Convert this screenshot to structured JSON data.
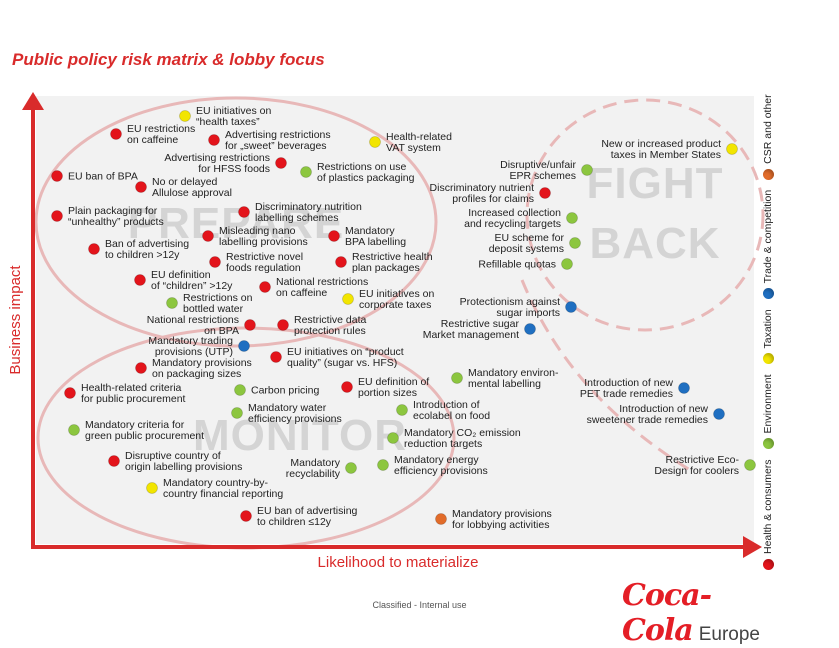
{
  "title": "Public policy risk matrix & lobby focus",
  "footer": "Classified - Internal use",
  "logo": {
    "script": "Coca-Cola",
    "region": "Europe"
  },
  "colors": {
    "Health & consumers": "#e3141b",
    "Environment": "#8cc63f",
    "Taxation": "#f2e500",
    "Trade & competition": "#1f6fc1",
    "CSR and other": "#e26c2a",
    "axis": "#d92b2b"
  },
  "legend": [
    "Health & consumers",
    "Environment",
    "Taxation",
    "Trade & competition",
    "CSR and other"
  ],
  "chart_data": {
    "type": "scatter",
    "title": "Public policy risk matrix & lobby focus",
    "xlabel": "Likelihood to materialize",
    "ylabel": "Business impact",
    "zones": [
      "PREPARE",
      "MONITOR",
      "FIGHT BACK"
    ],
    "points": [
      {
        "category": "Taxation",
        "label": [
          "EU initiatives on",
          "“health taxes”"
        ]
      },
      {
        "category": "Health & consumers",
        "label": [
          "EU restrictions",
          "on caffeine"
        ]
      },
      {
        "category": "Health & consumers",
        "label": [
          "Advertising restrictions",
          "for „sweet” beverages"
        ]
      },
      {
        "category": "Taxation",
        "label": [
          "Health-related",
          "VAT system"
        ]
      },
      {
        "category": "Taxation",
        "label": [
          "New or increased product",
          "taxes in Member States"
        ]
      },
      {
        "category": "Health & consumers",
        "label": [
          "Advertising restrictions",
          "for HFSS foods"
        ]
      },
      {
        "category": "Environment",
        "label": [
          "Restrictions on use",
          "of plastics packaging"
        ]
      },
      {
        "category": "Health & consumers",
        "label": [
          "EU ban of BPA"
        ]
      },
      {
        "category": "Health & consumers",
        "label": [
          "No or delayed",
          "Allulose approval"
        ]
      },
      {
        "category": "Environment",
        "label": [
          "Disruptive/unfair",
          "EPR schemes"
        ]
      },
      {
        "category": "Health & consumers",
        "label": [
          "Discriminatory nutrient",
          "profiles for claims"
        ]
      },
      {
        "category": "Health & consumers",
        "label": [
          "Plain packaging for",
          "“unhealthy” products"
        ]
      },
      {
        "category": "Health & consumers",
        "label": [
          "Discriminatory nutrition",
          "labelling schemes"
        ]
      },
      {
        "category": "Environment",
        "label": [
          "Increased collection",
          "and recycling targets"
        ]
      },
      {
        "category": "Health & consumers",
        "label": [
          "Misleading nano",
          "labelling provisions"
        ]
      },
      {
        "category": "Health & consumers",
        "label": [
          "Mandatory",
          "BPA labelling"
        ]
      },
      {
        "category": "Health & consumers",
        "label": [
          "Ban of advertising",
          "to children >12y"
        ]
      },
      {
        "category": "Environment",
        "label": [
          "EU scheme for",
          "deposit systems"
        ]
      },
      {
        "category": "Health & consumers",
        "label": [
          "Restrictive novel",
          "foods regulation"
        ]
      },
      {
        "category": "Health & consumers",
        "label": [
          "Restrictive health",
          "plan packages"
        ]
      },
      {
        "category": "Environment",
        "label": [
          "Refillable quotas"
        ]
      },
      {
        "category": "Health & consumers",
        "label": [
          "EU definition",
          "of “children” >12y"
        ]
      },
      {
        "category": "Health & consumers",
        "label": [
          "National restrictions",
          "on caffeine"
        ]
      },
      {
        "category": "Taxation",
        "label": [
          "EU initiatives on",
          "corporate taxes"
        ]
      },
      {
        "category": "Environment",
        "label": [
          "Restrictions on",
          "bottled water"
        ]
      },
      {
        "category": "Trade & competition",
        "label": [
          "Protectionism against",
          "sugar imports"
        ]
      },
      {
        "category": "Health & consumers",
        "label": [
          "National restrictions",
          "on BPA"
        ]
      },
      {
        "category": "Health & consumers",
        "label": [
          "Restrictive data",
          "protection rules"
        ]
      },
      {
        "category": "Trade & competition",
        "label": [
          "Restrictive sugar",
          "Market management"
        ]
      },
      {
        "category": "Trade & competition",
        "label": [
          "Mandatory trading",
          "provisions (UTP)"
        ]
      },
      {
        "category": "Health & consumers",
        "label": [
          "Mandatory provisions",
          "on packaging sizes"
        ]
      },
      {
        "category": "Health & consumers",
        "label": [
          "EU initiatives on “product",
          "quality” (sugar vs. HFS)"
        ]
      },
      {
        "category": "Environment",
        "label": [
          "Mandatory environ-",
          "mental labelling"
        ]
      },
      {
        "category": "Trade & competition",
        "label": [
          "Introduction of new",
          "PET trade remedies"
        ]
      },
      {
        "category": "Health & consumers",
        "label": [
          "Health-related criteria",
          "for public procurement"
        ]
      },
      {
        "category": "Environment",
        "label": [
          "Carbon pricing"
        ]
      },
      {
        "category": "Health & consumers",
        "label": [
          "EU definition of",
          "portion sizes"
        ]
      },
      {
        "category": "Environment",
        "label": [
          "Mandatory water",
          "efficiency provisions"
        ]
      },
      {
        "category": "Environment",
        "label": [
          "Introduction of",
          "ecolabel on food"
        ]
      },
      {
        "category": "Trade & competition",
        "label": [
          "Introduction of new",
          "sweetener trade remedies"
        ]
      },
      {
        "category": "Environment",
        "label": [
          "Mandatory criteria for",
          "green public procurement"
        ]
      },
      {
        "category": "Environment",
        "label": [
          "Mandatory CO₂ emission",
          "reduction targets"
        ]
      },
      {
        "category": "Health & consumers",
        "label": [
          "Disruptive country of",
          "origin labelling provisions"
        ]
      },
      {
        "category": "Environment",
        "label": [
          "Mandatory",
          "recyclability"
        ]
      },
      {
        "category": "Environment",
        "label": [
          "Mandatory energy",
          "efficiency provisions"
        ]
      },
      {
        "category": "Environment",
        "label": [
          "Restrictive Eco-",
          "Design for coolers"
        ]
      },
      {
        "category": "Taxation",
        "label": [
          "Mandatory country-by-",
          "country financial reporting"
        ]
      },
      {
        "category": "Health & consumers",
        "label": [
          "EU ban of advertising",
          "to children ≤12y"
        ]
      },
      {
        "category": "CSR and other",
        "label": [
          "Mandatory provisions",
          "for lobbying activities"
        ]
      }
    ]
  }
}
